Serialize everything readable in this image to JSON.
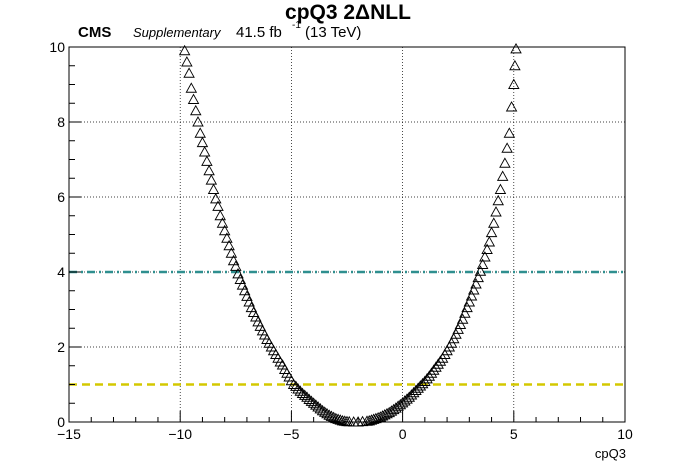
{
  "header": {
    "title": "cpQ3 2ΔNLL",
    "experiment": "CMS",
    "status": "Supplementary",
    "lumi_value": "41.5 fb",
    "lumi_exp": "-1",
    "energy": "(13 TeV)"
  },
  "chart_data": {
    "type": "scatter",
    "title": "cpQ3 2ΔNLL",
    "xlabel": "cpQ3",
    "ylabel": "",
    "xlim": [
      -15,
      10
    ],
    "ylim": [
      0,
      10
    ],
    "xticks": [
      "−15",
      "−10",
      "−5",
      "0",
      "5",
      "10"
    ],
    "yticks": [
      "0",
      "2",
      "4",
      "6",
      "8",
      "10"
    ],
    "grid": true,
    "marker": "open-triangle",
    "min_point": [
      -2.0,
      0.0
    ],
    "series": [
      {
        "points": [
          [
            -9.8,
            9.9
          ],
          [
            -9.7,
            9.6
          ],
          [
            -9.6,
            9.3
          ],
          [
            -9.5,
            8.9
          ],
          [
            -9.4,
            8.6
          ],
          [
            -9.3,
            8.3
          ],
          [
            -9.2,
            8.0
          ],
          [
            -9.1,
            7.7
          ],
          [
            -9.0,
            7.45
          ],
          [
            -8.9,
            7.2
          ],
          [
            -8.8,
            6.95
          ],
          [
            -8.7,
            6.7
          ],
          [
            -8.6,
            6.45
          ],
          [
            -8.5,
            6.2
          ],
          [
            -8.4,
            5.95
          ],
          [
            -8.3,
            5.75
          ],
          [
            -8.2,
            5.5
          ],
          [
            -8.1,
            5.3
          ],
          [
            -8.0,
            5.1
          ],
          [
            -7.9,
            4.9
          ],
          [
            -7.8,
            4.7
          ],
          [
            -7.7,
            4.5
          ],
          [
            -7.6,
            4.3
          ],
          [
            -7.5,
            4.15
          ],
          [
            -7.4,
            3.95
          ],
          [
            -7.3,
            3.8
          ],
          [
            -7.2,
            3.65
          ],
          [
            -7.1,
            3.5
          ],
          [
            -7.0,
            3.35
          ],
          [
            -6.9,
            3.2
          ],
          [
            -6.8,
            3.05
          ],
          [
            -6.7,
            2.92
          ],
          [
            -6.6,
            2.8
          ],
          [
            -6.5,
            2.67
          ],
          [
            -6.4,
            2.55
          ],
          [
            -6.3,
            2.43
          ],
          [
            -6.2,
            2.32
          ],
          [
            -6.1,
            2.2
          ],
          [
            -6.0,
            2.1
          ],
          [
            -5.9,
            2.0
          ],
          [
            -5.8,
            1.9
          ],
          [
            -5.7,
            1.8
          ],
          [
            -5.6,
            1.7
          ],
          [
            -5.5,
            1.6
          ],
          [
            -5.4,
            1.52
          ],
          [
            -5.3,
            1.4
          ],
          [
            -5.2,
            1.3
          ],
          [
            -5.1,
            1.2
          ],
          [
            -5.0,
            1.1
          ],
          [
            -4.9,
            1.0
          ],
          [
            -4.8,
            0.95
          ],
          [
            -4.7,
            0.88
          ],
          [
            -4.6,
            0.82
          ],
          [
            -4.5,
            0.76
          ],
          [
            -4.4,
            0.71
          ],
          [
            -4.3,
            0.66
          ],
          [
            -4.2,
            0.6
          ],
          [
            -4.1,
            0.55
          ],
          [
            -4.0,
            0.5
          ],
          [
            -3.9,
            0.45
          ],
          [
            -3.8,
            0.4
          ],
          [
            -3.7,
            0.35
          ],
          [
            -3.6,
            0.3
          ],
          [
            -3.5,
            0.26
          ],
          [
            -3.4,
            0.22
          ],
          [
            -3.3,
            0.18
          ],
          [
            -3.2,
            0.15
          ],
          [
            -3.1,
            0.12
          ],
          [
            -3.0,
            0.09
          ],
          [
            -2.9,
            0.07
          ],
          [
            -2.8,
            0.05
          ],
          [
            -2.7,
            0.03
          ],
          [
            -2.6,
            0.02
          ],
          [
            -2.5,
            0.01
          ],
          [
            -2.4,
            0.005
          ],
          [
            -2.2,
            0.0
          ],
          [
            -2.0,
            0.0
          ],
          [
            -1.8,
            0.01
          ],
          [
            -1.6,
            0.02
          ],
          [
            -1.5,
            0.03
          ],
          [
            -1.4,
            0.05
          ],
          [
            -1.3,
            0.07
          ],
          [
            -1.2,
            0.09
          ],
          [
            -1.1,
            0.11
          ],
          [
            -1.0,
            0.13
          ],
          [
            -0.9,
            0.16
          ],
          [
            -0.8,
            0.19
          ],
          [
            -0.7,
            0.22
          ],
          [
            -0.6,
            0.25
          ],
          [
            -0.5,
            0.29
          ],
          [
            -0.4,
            0.33
          ],
          [
            -0.3,
            0.37
          ],
          [
            -0.2,
            0.42
          ],
          [
            -0.1,
            0.46
          ],
          [
            0.0,
            0.51
          ],
          [
            0.1,
            0.56
          ],
          [
            0.2,
            0.61
          ],
          [
            0.3,
            0.66
          ],
          [
            0.4,
            0.72
          ],
          [
            0.5,
            0.78
          ],
          [
            0.6,
            0.84
          ],
          [
            0.7,
            0.9
          ],
          [
            0.8,
            0.96
          ],
          [
            0.9,
            1.02
          ],
          [
            1.0,
            1.08
          ],
          [
            1.1,
            1.15
          ],
          [
            1.2,
            1.22
          ],
          [
            1.3,
            1.3
          ],
          [
            1.4,
            1.38
          ],
          [
            1.5,
            1.46
          ],
          [
            1.6,
            1.54
          ],
          [
            1.7,
            1.62
          ],
          [
            1.8,
            1.7
          ],
          [
            1.9,
            1.8
          ],
          [
            2.0,
            1.9
          ],
          [
            2.1,
            2.0
          ],
          [
            2.2,
            2.1
          ],
          [
            2.3,
            2.22
          ],
          [
            2.4,
            2.34
          ],
          [
            2.5,
            2.47
          ],
          [
            2.6,
            2.6
          ],
          [
            2.7,
            2.74
          ],
          [
            2.8,
            2.9
          ],
          [
            2.9,
            3.05
          ],
          [
            3.0,
            3.2
          ],
          [
            3.1,
            3.36
          ],
          [
            3.2,
            3.52
          ],
          [
            3.3,
            3.68
          ],
          [
            3.4,
            3.85
          ],
          [
            3.5,
            4.02
          ],
          [
            3.6,
            4.2
          ],
          [
            3.7,
            4.4
          ],
          [
            3.8,
            4.6
          ],
          [
            3.9,
            4.8
          ],
          [
            4.0,
            5.05
          ],
          [
            4.1,
            5.3
          ],
          [
            4.2,
            5.6
          ],
          [
            4.3,
            5.9
          ],
          [
            4.4,
            6.2
          ],
          [
            4.5,
            6.55
          ],
          [
            4.6,
            6.9
          ],
          [
            4.7,
            7.3
          ],
          [
            4.8,
            7.7
          ],
          [
            4.9,
            8.4
          ],
          [
            5.0,
            9.0
          ],
          [
            5.05,
            9.5
          ],
          [
            5.1,
            9.95
          ]
        ]
      }
    ],
    "reference_lines": [
      {
        "y": 4,
        "color": "#2f8f8f",
        "style": "dash-dot"
      },
      {
        "y": 1,
        "color": "#d4c800",
        "style": "dashed"
      }
    ]
  }
}
